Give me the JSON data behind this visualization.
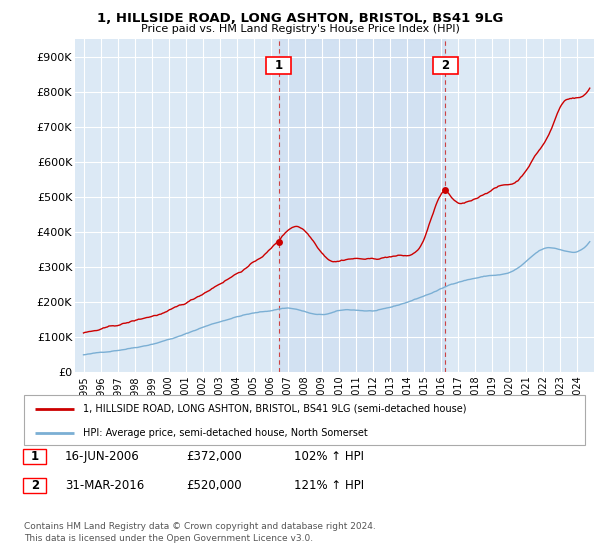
{
  "title": "1, HILLSIDE ROAD, LONG ASHTON, BRISTOL, BS41 9LG",
  "subtitle": "Price paid vs. HM Land Registry's House Price Index (HPI)",
  "hpi_label": "HPI: Average price, semi-detached house, North Somerset",
  "property_label": "1, HILLSIDE ROAD, LONG ASHTON, BRISTOL, BS41 9LG (semi-detached house)",
  "property_color": "#cc0000",
  "hpi_color": "#7bafd4",
  "shade_color": "#dce9f5",
  "background_color": "#dce9f5",
  "sale1_date": "16-JUN-2006",
  "sale1_price": 372000,
  "sale1_hpi_pct": "102%",
  "sale2_date": "31-MAR-2016",
  "sale2_price": 520000,
  "sale2_hpi_pct": "121%",
  "sale1_x": 2006.46,
  "sale2_x": 2016.25,
  "ylim": [
    0,
    950000
  ],
  "xlim": [
    1994.5,
    2025.0
  ],
  "yticks": [
    0,
    100000,
    200000,
    300000,
    400000,
    500000,
    600000,
    700000,
    800000,
    900000
  ],
  "ytick_labels": [
    "£0",
    "£100K",
    "£200K",
    "£300K",
    "£400K",
    "£500K",
    "£600K",
    "£700K",
    "£800K",
    "£900K"
  ],
  "xticks": [
    1995,
    1996,
    1997,
    1998,
    1999,
    2000,
    2001,
    2002,
    2003,
    2004,
    2005,
    2006,
    2007,
    2008,
    2009,
    2010,
    2011,
    2012,
    2013,
    2014,
    2015,
    2016,
    2017,
    2018,
    2019,
    2020,
    2021,
    2022,
    2023,
    2024
  ],
  "footnote_line1": "Contains HM Land Registry data © Crown copyright and database right 2024.",
  "footnote_line2": "This data is licensed under the Open Government Licence v3.0."
}
